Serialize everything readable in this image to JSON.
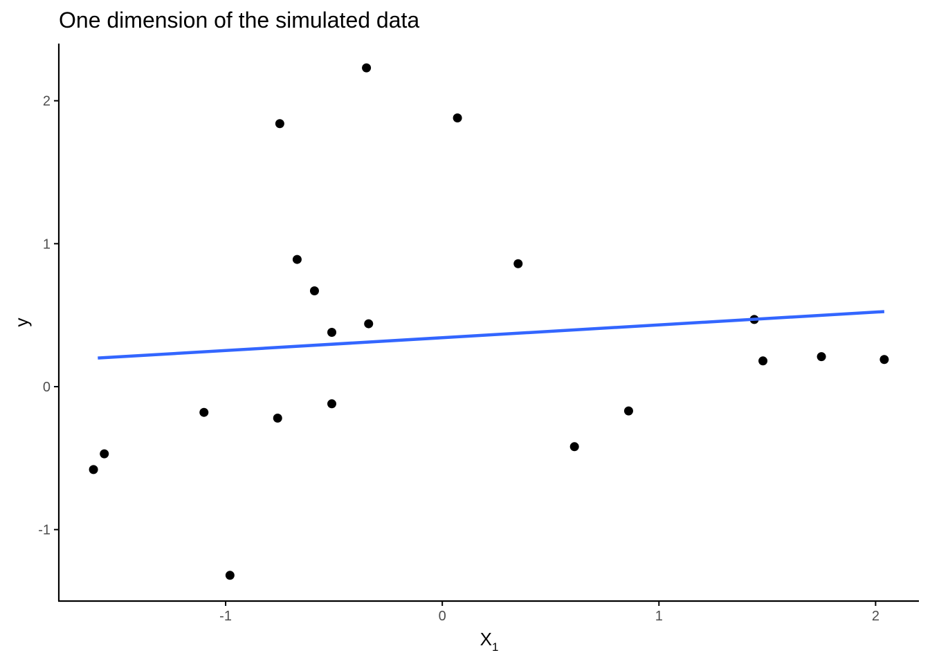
{
  "chart_data": {
    "type": "scatter",
    "title": "One dimension of the simulated data",
    "xlabel": "X",
    "xlabel_subscript": "1",
    "ylabel": "y",
    "xlim": [
      -1.77,
      2.2
    ],
    "ylim": [
      -1.5,
      2.4
    ],
    "xticks": [
      -1,
      0,
      1,
      2
    ],
    "yticks": [
      -1,
      0,
      1,
      2
    ],
    "grid": false,
    "points": [
      {
        "x": -1.61,
        "y": -0.58
      },
      {
        "x": -1.56,
        "y": -0.47
      },
      {
        "x": -1.1,
        "y": -0.18
      },
      {
        "x": -0.98,
        "y": -1.32
      },
      {
        "x": -0.76,
        "y": -0.22
      },
      {
        "x": -0.75,
        "y": 1.84
      },
      {
        "x": -0.67,
        "y": 0.89
      },
      {
        "x": -0.59,
        "y": 0.67
      },
      {
        "x": -0.51,
        "y": 0.38
      },
      {
        "x": -0.51,
        "y": -0.12
      },
      {
        "x": -0.35,
        "y": 2.23
      },
      {
        "x": -0.34,
        "y": 0.44
      },
      {
        "x": 0.07,
        "y": 1.88
      },
      {
        "x": 0.35,
        "y": 0.86
      },
      {
        "x": 0.61,
        "y": -0.42
      },
      {
        "x": 0.86,
        "y": -0.17
      },
      {
        "x": 1.44,
        "y": 0.47
      },
      {
        "x": 1.48,
        "y": 0.18
      },
      {
        "x": 1.75,
        "y": 0.21
      },
      {
        "x": 2.04,
        "y": 0.19
      }
    ],
    "fit_line": {
      "x": [
        -1.59,
        2.04
      ],
      "y": [
        0.2,
        0.525
      ],
      "color": "#3366ff"
    },
    "point_color": "#000000"
  }
}
